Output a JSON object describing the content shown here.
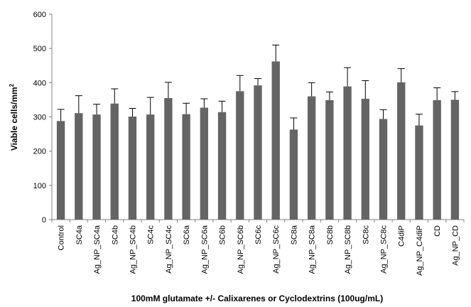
{
  "chart_data": {
    "type": "bar",
    "title": "",
    "xlabel": "100mM glutamate +/- Calixarenes or Cyclodextrins (100ug/mL)",
    "ylabel": "Viable cells/mm",
    "ylabel_superscript": "2",
    "ylim": [
      0,
      600
    ],
    "yticks": [
      0,
      100,
      200,
      300,
      400,
      500,
      600
    ],
    "grid": false,
    "legend": "none",
    "bar_color": "#646464",
    "categories": [
      "Control",
      "SC4a",
      "Ag_NP_SC4a",
      "SC4b",
      "Ag_NP_SC4b",
      "SC4c",
      "Ag_NP_SC4c",
      "SC6a",
      "Ag_NP_SC6a",
      "SC6b",
      "Ag_NP_SC6b",
      "SC6c",
      "Ag_NP_SC6c",
      "SC8a",
      "Ag_NP_SC8a",
      "SC8b",
      "Ag_NP_SC8b",
      "SC8c",
      "Ag_NP_SC8c",
      "C4diP",
      "Ag_NP_C4diP",
      "CD",
      "Ag_NP_CD"
    ],
    "values": [
      288,
      311,
      307,
      339,
      301,
      307,
      355,
      308,
      327,
      314,
      375,
      392,
      462,
      263,
      360,
      349,
      389,
      353,
      294,
      401,
      275,
      349,
      350
    ],
    "error_upper": [
      322,
      362,
      337,
      382,
      325,
      357,
      401,
      340,
      353,
      346,
      421,
      412,
      510,
      297,
      400,
      373,
      444,
      406,
      321,
      441,
      308,
      385,
      374
    ]
  }
}
